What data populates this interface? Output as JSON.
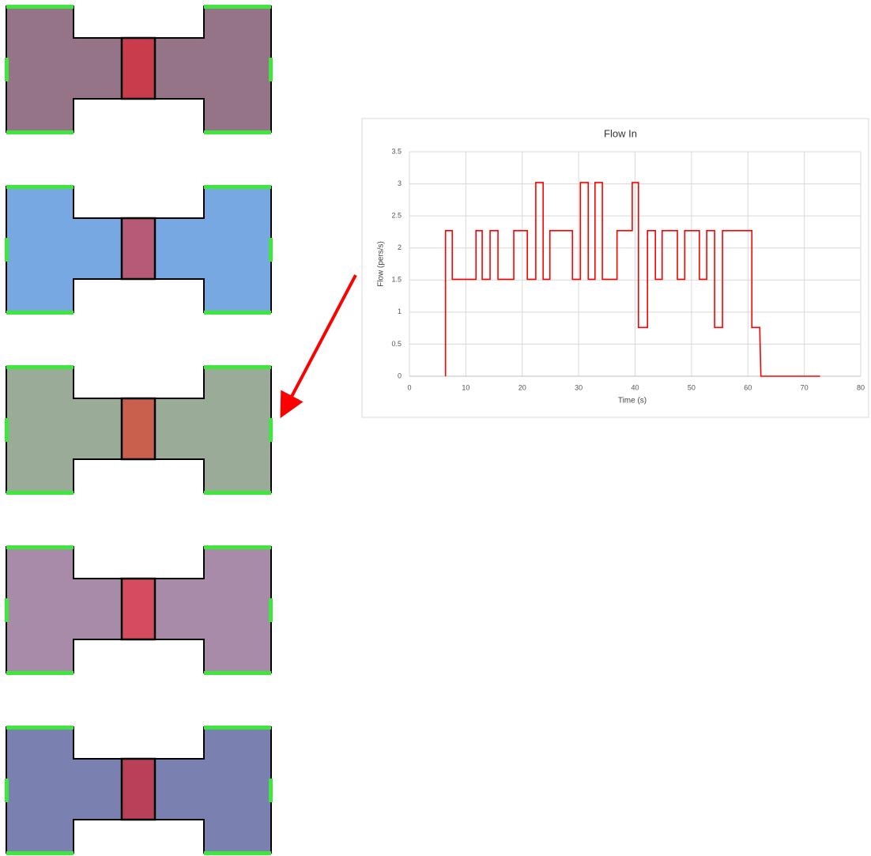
{
  "chart_data": {
    "type": "line",
    "title": "Flow In",
    "x_label": "Time (s)",
    "y_label": "Flow (pers/s)",
    "color": "#ff0000",
    "grid": true,
    "xlim": [
      0,
      80
    ],
    "xticks": [
      0,
      10,
      20,
      30,
      40,
      50,
      60,
      70,
      80
    ],
    "ylim": [
      0,
      3.5
    ],
    "yticks": [
      0,
      0.5,
      1,
      1.5,
      2,
      2.5,
      3,
      3.5
    ],
    "x": [
      6.4,
      6.4,
      7.6,
      7.6,
      11.8,
      11.8,
      12.9,
      12.9,
      14.3,
      14.3,
      15.7,
      15.7,
      18.5,
      18.5,
      20.9,
      20.9,
      22.4,
      22.4,
      23.7,
      23.7,
      24.9,
      24.9,
      28.9,
      28.9,
      30.3,
      30.3,
      31.7,
      31.7,
      32.9,
      32.9,
      34.2,
      34.2,
      36.8,
      36.8,
      39.5,
      39.5,
      40.6,
      40.6,
      42.2,
      42.2,
      43.6,
      43.6,
      44.8,
      44.8,
      47.5,
      47.5,
      48.8,
      48.8,
      51.4,
      51.4,
      52.7,
      52.7,
      54.1,
      54.1,
      55.5,
      55.5,
      60.7,
      60.7,
      62.1,
      62.3,
      72.8
    ],
    "values": [
      0,
      2.27,
      2.27,
      1.51,
      1.51,
      2.27,
      2.27,
      1.51,
      1.51,
      2.27,
      2.27,
      1.51,
      1.51,
      2.27,
      2.27,
      1.51,
      1.51,
      3.02,
      3.02,
      1.51,
      1.51,
      2.27,
      2.27,
      1.51,
      1.51,
      3.02,
      3.02,
      1.51,
      1.51,
      3.02,
      3.02,
      1.51,
      1.51,
      2.27,
      2.27,
      3.02,
      3.02,
      0.76,
      0.76,
      2.27,
      2.27,
      1.51,
      1.51,
      2.27,
      2.27,
      1.51,
      1.51,
      2.27,
      2.27,
      1.51,
      1.51,
      2.27,
      2.27,
      0.76,
      0.76,
      2.27,
      2.27,
      0.76,
      0.76,
      0,
      0
    ]
  }
}
